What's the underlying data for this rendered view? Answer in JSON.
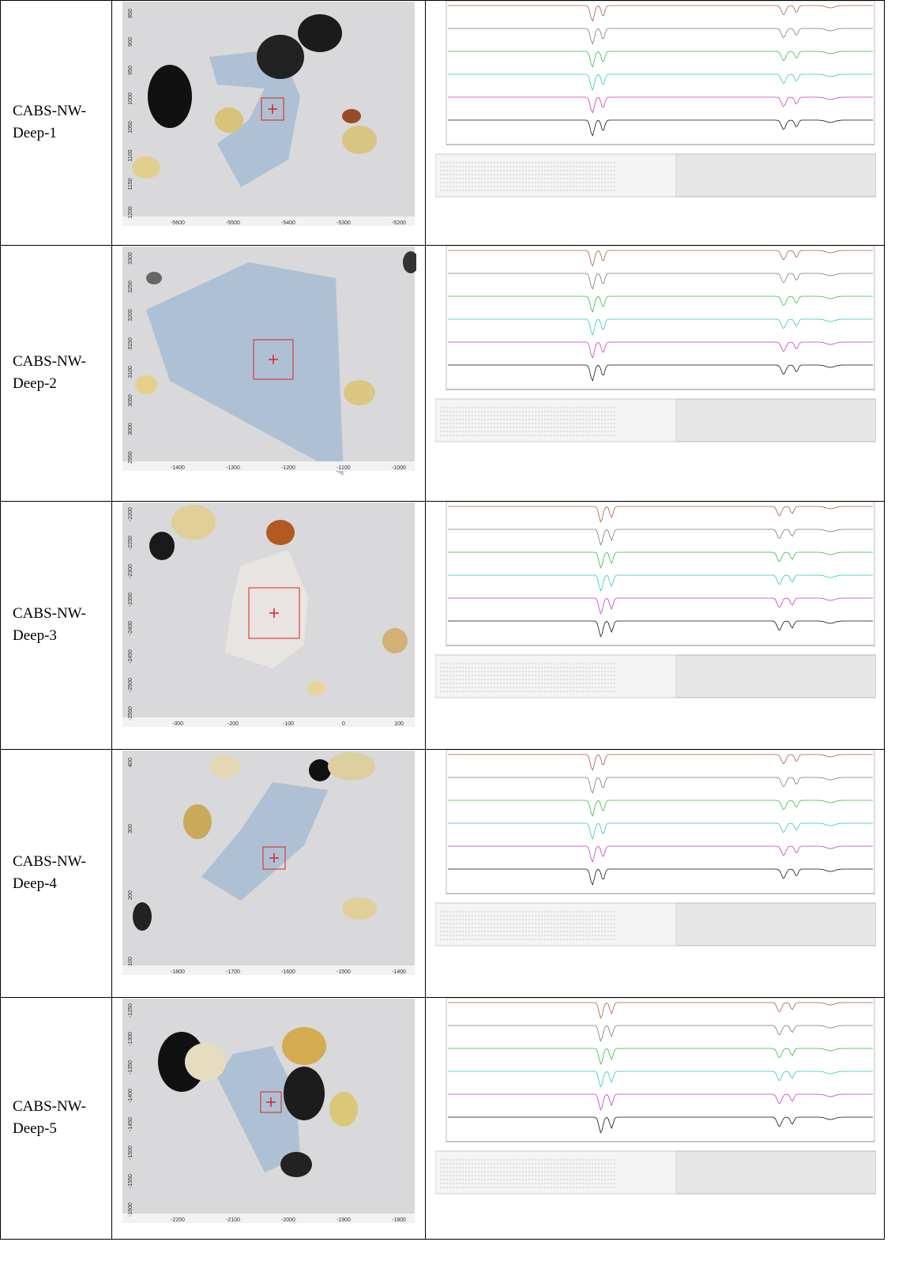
{
  "table": {
    "rows": [
      {
        "label": "CABS-NW-Deep-1",
        "image": {
          "xticks": [
            "-5600",
            "-5500",
            "-5400",
            "-5300",
            "-5200"
          ],
          "yticks": [
            "850",
            "900",
            "950",
            "1000",
            "1050",
            "1100",
            "1150",
            "1200"
          ]
        }
      },
      {
        "label": "CABS-NW-Deep-2",
        "image": {
          "xticks": [
            "-1400",
            "-1300",
            "-1200",
            "-1100",
            "-1000"
          ],
          "yticks": [
            "3300",
            "3250",
            "3200",
            "3150",
            "3100",
            "3050",
            "3000",
            "2950"
          ]
        }
      },
      {
        "label": "CABS-NW-Deep-3",
        "image": {
          "xticks": [
            "-300",
            "-200",
            "-100",
            "0",
            "100"
          ],
          "yticks": [
            "-2200",
            "-2250",
            "-2300",
            "-2350",
            "-2400",
            "-2450",
            "-2500",
            "-2550"
          ]
        }
      },
      {
        "label": "CABS-NW-Deep-4",
        "image": {
          "xticks": [
            "-1800",
            "-1700",
            "-1600",
            "-1500",
            "-1400"
          ],
          "yticks": [
            "400",
            "300",
            "200",
            "100"
          ]
        }
      },
      {
        "label": "CABS-NW-Deep-5",
        "image": {
          "xticks": [
            "-2200",
            "-2100",
            "-2000",
            "-1900",
            "-1800"
          ],
          "yticks": [
            "-1250",
            "-1300",
            "-1350",
            "-1400",
            "-1450",
            "-1500",
            "-1550",
            "-1600"
          ]
        }
      }
    ]
  }
}
